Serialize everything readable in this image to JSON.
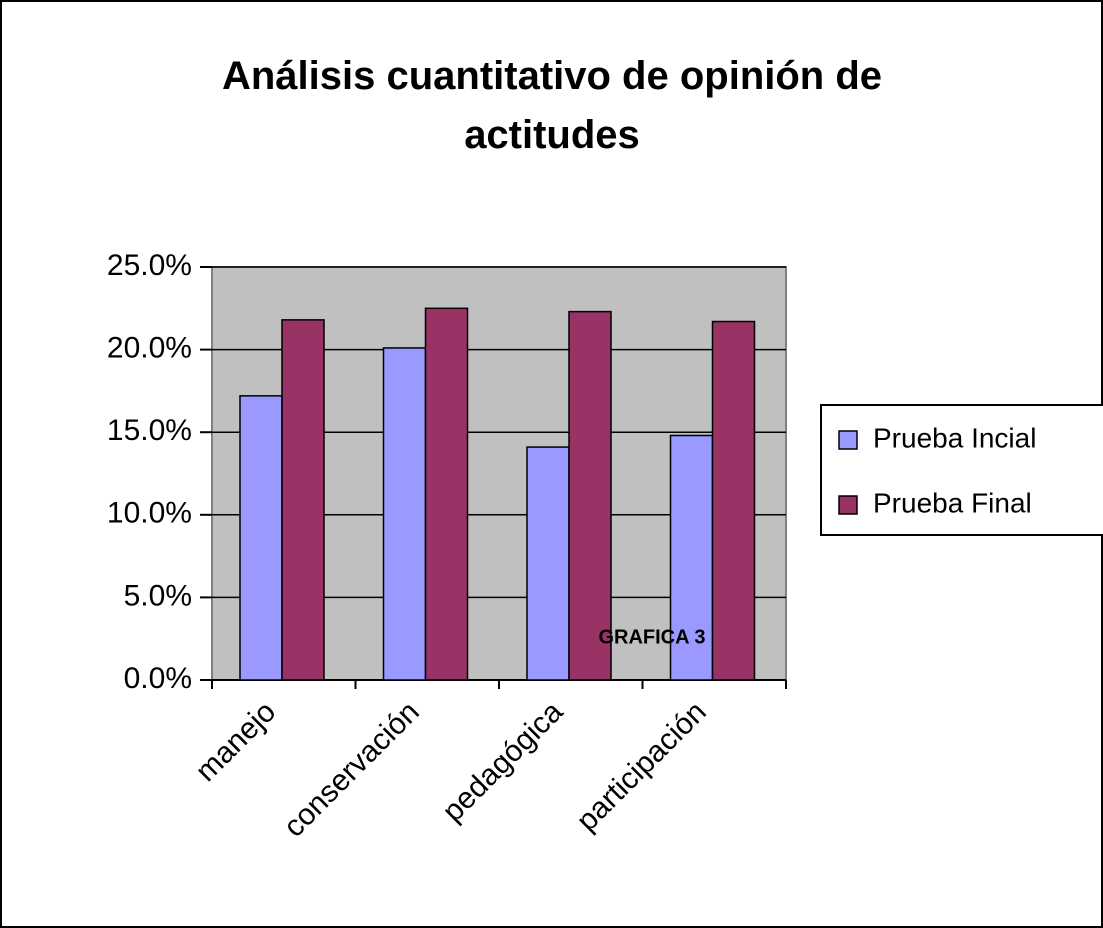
{
  "chart_data": {
    "type": "bar",
    "title": "Análisis cuantitativo de opinión de actitudes",
    "categories": [
      "manejo",
      "conservación",
      "pedagógica",
      "participación"
    ],
    "series": [
      {
        "name": "Prueba Incial",
        "color": "#9999ff",
        "values": [
          17.2,
          20.1,
          14.1,
          14.8
        ]
      },
      {
        "name": "Prueba Final",
        "color": "#993366",
        "values": [
          21.8,
          22.5,
          22.3,
          21.7
        ]
      }
    ],
    "ylim": [
      0,
      25
    ],
    "yticks": [
      {
        "value": 0,
        "label": "0.0%"
      },
      {
        "value": 5,
        "label": "5.0%"
      },
      {
        "value": 10,
        "label": "10.0%"
      },
      {
        "value": 15,
        "label": "15.0%"
      },
      {
        "value": 20,
        "label": "20.0%"
      },
      {
        "value": 25,
        "label": "25.0%"
      }
    ],
    "grid": true,
    "legend": "right",
    "annotation": "GRAFICA 3"
  }
}
